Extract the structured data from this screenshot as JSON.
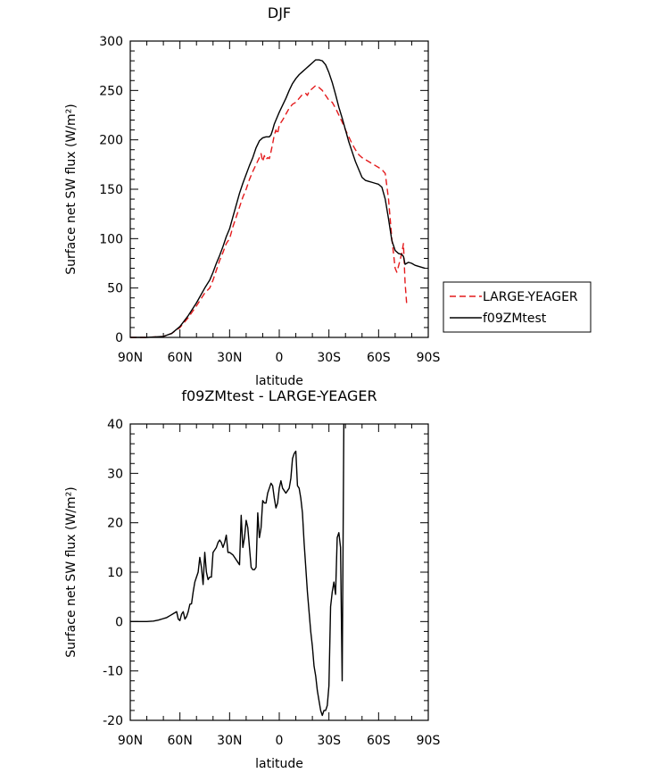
{
  "chart_data": [
    {
      "type": "line",
      "title": "DJF",
      "xlabel": "latitude",
      "ylabel": "Surface net SW flux (W/m²)",
      "xlim": [
        -90,
        90
      ],
      "ylim": [
        0,
        300
      ],
      "x_ticks": [
        -90,
        -60,
        -30,
        0,
        30,
        60,
        90
      ],
      "x_tick_labels": [
        "90N",
        "60N",
        "30N",
        "0",
        "30S",
        "60S",
        "90S"
      ],
      "y_ticks": [
        0,
        50,
        100,
        150,
        200,
        250,
        300
      ],
      "y_tick_labels": [
        "0",
        "50",
        "100",
        "150",
        "200",
        "250",
        "300"
      ],
      "legend_position": "right",
      "series": [
        {
          "name": "LARGE-YEAGER",
          "color": "#e41a1c",
          "dash": "dashed",
          "points": [
            [
              -90,
              0
            ],
            [
              -80,
              0
            ],
            [
              -75,
              0.5
            ],
            [
              -70,
              1
            ],
            [
              -65,
              4
            ],
            [
              -60,
              10
            ],
            [
              -55,
              20
            ],
            [
              -50,
              32
            ],
            [
              -45,
              45
            ],
            [
              -42,
              50
            ],
            [
              -40,
              58
            ],
            [
              -38,
              68
            ],
            [
              -36,
              78
            ],
            [
              -34,
              86
            ],
            [
              -32,
              95
            ],
            [
              -30,
              100
            ],
            [
              -28,
              112
            ],
            [
              -26,
              122
            ],
            [
              -24,
              132
            ],
            [
              -22,
              142
            ],
            [
              -20,
              150
            ],
            [
              -18,
              160
            ],
            [
              -16,
              168
            ],
            [
              -14,
              175
            ],
            [
              -12,
              182
            ],
            [
              -11,
              186
            ],
            [
              -10,
              178
            ],
            [
              -9,
              184
            ],
            [
              -8,
              180
            ],
            [
              -7,
              182
            ],
            [
              -6,
              181
            ],
            [
              -5,
              188
            ],
            [
              -4,
              196
            ],
            [
              -3,
              205
            ],
            [
              -2,
              210
            ],
            [
              -1,
              206
            ],
            [
              0,
              215
            ],
            [
              2,
              220
            ],
            [
              4,
              226
            ],
            [
              6,
              232
            ],
            [
              8,
              236
            ],
            [
              10,
              238
            ],
            [
              12,
              242
            ],
            [
              14,
              246
            ],
            [
              16,
              247
            ],
            [
              17,
              245
            ],
            [
              18,
              249
            ],
            [
              20,
              252
            ],
            [
              22,
              255
            ],
            [
              24,
              253
            ],
            [
              26,
              250
            ],
            [
              28,
              245
            ],
            [
              30,
              240
            ],
            [
              32,
              238
            ],
            [
              34,
              232
            ],
            [
              36,
              225
            ],
            [
              38,
              218
            ],
            [
              40,
              210
            ],
            [
              42,
              203
            ],
            [
              44,
              196
            ],
            [
              46,
              190
            ],
            [
              48,
              185
            ],
            [
              50,
              182
            ],
            [
              52,
              180
            ],
            [
              54,
              178
            ],
            [
              56,
              176
            ],
            [
              58,
              174
            ],
            [
              60,
              172
            ],
            [
              62,
              170
            ],
            [
              64,
              166
            ],
            [
              66,
              140
            ],
            [
              68,
              100
            ],
            [
              70,
              70
            ],
            [
              71,
              66
            ],
            [
              72,
              72
            ],
            [
              74,
              85
            ],
            [
              75,
              95
            ],
            [
              76,
              55
            ],
            [
              77,
              33
            ]
          ]
        },
        {
          "name": "f09ZMtest",
          "color": "#000000",
          "dash": "solid",
          "points": [
            [
              -90,
              0
            ],
            [
              -80,
              0
            ],
            [
              -75,
              0.5
            ],
            [
              -70,
              1
            ],
            [
              -65,
              4
            ],
            [
              -60,
              11
            ],
            [
              -55,
              22
            ],
            [
              -50,
              35
            ],
            [
              -45,
              50
            ],
            [
              -42,
              58
            ],
            [
              -40,
              66
            ],
            [
              -38,
              75
            ],
            [
              -36,
              83
            ],
            [
              -34,
              92
            ],
            [
              -32,
              102
            ],
            [
              -30,
              110
            ],
            [
              -28,
              122
            ],
            [
              -26,
              134
            ],
            [
              -24,
              146
            ],
            [
              -22,
              156
            ],
            [
              -20,
              165
            ],
            [
              -18,
              174
            ],
            [
              -16,
              182
            ],
            [
              -14,
              192
            ],
            [
              -12,
              199
            ],
            [
              -10,
              202
            ],
            [
              -8,
              203
            ],
            [
              -6,
              203
            ],
            [
              -5,
              205
            ],
            [
              -4,
              210
            ],
            [
              -3,
              216
            ],
            [
              -2,
              220
            ],
            [
              0,
              228
            ],
            [
              2,
              235
            ],
            [
              4,
              242
            ],
            [
              6,
              250
            ],
            [
              8,
              257
            ],
            [
              10,
              262
            ],
            [
              12,
              266
            ],
            [
              14,
              269
            ],
            [
              16,
              272
            ],
            [
              18,
              275
            ],
            [
              20,
              278
            ],
            [
              22,
              281
            ],
            [
              24,
              281
            ],
            [
              26,
              280
            ],
            [
              28,
              276
            ],
            [
              30,
              268
            ],
            [
              32,
              258
            ],
            [
              34,
              246
            ],
            [
              36,
              233
            ],
            [
              38,
              222
            ],
            [
              40,
              210
            ],
            [
              42,
              198
            ],
            [
              44,
              188
            ],
            [
              46,
              178
            ],
            [
              48,
              170
            ],
            [
              50,
              162
            ],
            [
              52,
              159
            ],
            [
              54,
              158
            ],
            [
              56,
              157
            ],
            [
              58,
              156
            ],
            [
              60,
              155
            ],
            [
              62,
              152
            ],
            [
              64,
              140
            ],
            [
              66,
              120
            ],
            [
              68,
              98
            ],
            [
              70,
              88
            ],
            [
              72,
              85
            ],
            [
              74,
              84
            ],
            [
              75,
              82
            ],
            [
              76,
              74
            ],
            [
              78,
              76
            ],
            [
              80,
              75
            ],
            [
              82,
              73
            ],
            [
              84,
              72
            ],
            [
              86,
              71
            ],
            [
              88,
              70
            ]
          ]
        }
      ]
    },
    {
      "type": "line",
      "title": "f09ZMtest - LARGE-YEAGER",
      "xlabel": "latitude",
      "ylabel": "Surface net SW flux (W/m²)",
      "xlim": [
        -90,
        90
      ],
      "ylim": [
        -20,
        40
      ],
      "x_ticks": [
        -90,
        -60,
        -30,
        0,
        30,
        60,
        90
      ],
      "x_tick_labels": [
        "90N",
        "60N",
        "30N",
        "0",
        "30S",
        "60S",
        "90S"
      ],
      "y_ticks": [
        -20,
        -10,
        0,
        10,
        20,
        30,
        40
      ],
      "y_tick_labels": [
        "-20",
        "-10",
        "0",
        "10",
        "20",
        "30",
        "40"
      ],
      "series": [
        {
          "name": "",
          "color": "#000000",
          "dash": "solid",
          "points": [
            [
              -90,
              0
            ],
            [
              -80,
              0
            ],
            [
              -76,
              0.1
            ],
            [
              -73,
              0.3
            ],
            [
              -70,
              0.6
            ],
            [
              -69,
              0.7
            ],
            [
              -68,
              0.8
            ],
            [
              -66,
              1.2
            ],
            [
              -64,
              1.6
            ],
            [
              -62,
              2
            ],
            [
              -61,
              0.5
            ],
            [
              -60,
              0.2
            ],
            [
              -59,
              1.5
            ],
            [
              -58,
              2
            ],
            [
              -57,
              0.5
            ],
            [
              -56,
              1
            ],
            [
              -55,
              2
            ],
            [
              -54,
              3.5
            ],
            [
              -53,
              3.6
            ],
            [
              -52,
              6
            ],
            [
              -51,
              8
            ],
            [
              -50,
              9
            ],
            [
              -49,
              10
            ],
            [
              -48,
              13
            ],
            [
              -47,
              11
            ],
            [
              -46,
              7.5
            ],
            [
              -45,
              14
            ],
            [
              -44,
              10
            ],
            [
              -43,
              8.5
            ],
            [
              -42,
              9
            ],
            [
              -41,
              9
            ],
            [
              -40,
              14
            ],
            [
              -39,
              14.5
            ],
            [
              -38,
              15
            ],
            [
              -37,
              16
            ],
            [
              -36,
              16.5
            ],
            [
              -35,
              16
            ],
            [
              -34,
              15
            ],
            [
              -33,
              16
            ],
            [
              -32,
              17.5
            ],
            [
              -31,
              14
            ],
            [
              -30,
              14
            ],
            [
              -28,
              13.5
            ],
            [
              -26,
              12.5
            ],
            [
              -25,
              12
            ],
            [
              -24,
              11.5
            ],
            [
              -23,
              21.5
            ],
            [
              -22,
              15
            ],
            [
              -21,
              17
            ],
            [
              -20,
              20.5
            ],
            [
              -19,
              19
            ],
            [
              -18,
              15
            ],
            [
              -17,
              11
            ],
            [
              -16,
              10.5
            ],
            [
              -15,
              10.5
            ],
            [
              -14,
              11
            ],
            [
              -13,
              22
            ],
            [
              -12,
              17
            ],
            [
              -11,
              19
            ],
            [
              -10,
              24.5
            ],
            [
              -9,
              24
            ],
            [
              -8,
              24
            ],
            [
              -7,
              26
            ],
            [
              -6,
              27
            ],
            [
              -5,
              28
            ],
            [
              -4,
              27.5
            ],
            [
              -3,
              25
            ],
            [
              -2,
              23
            ],
            [
              -1,
              24
            ],
            [
              0,
              27
            ],
            [
              1,
              28.5
            ],
            [
              2,
              27
            ],
            [
              3,
              26.5
            ],
            [
              4,
              26
            ],
            [
              5,
              26.5
            ],
            [
              6,
              27
            ],
            [
              7,
              29
            ],
            [
              8,
              33
            ],
            [
              9,
              34
            ],
            [
              10,
              34.5
            ],
            [
              11,
              27.5
            ],
            [
              12,
              27
            ],
            [
              13,
              25
            ],
            [
              14,
              22
            ],
            [
              15,
              16
            ],
            [
              16,
              11
            ],
            [
              17,
              6
            ],
            [
              18,
              2
            ],
            [
              19,
              -2
            ],
            [
              20,
              -5
            ],
            [
              21,
              -9
            ],
            [
              22,
              -11
            ],
            [
              23,
              -14
            ],
            [
              24,
              -16
            ],
            [
              25,
              -18
            ],
            [
              26,
              -19
            ],
            [
              27,
              -18
            ],
            [
              28,
              -18
            ],
            [
              29,
              -17
            ],
            [
              30,
              -13
            ],
            [
              31,
              3
            ],
            [
              32,
              6
            ],
            [
              33,
              8
            ],
            [
              34,
              5.5
            ],
            [
              35,
              17
            ],
            [
              36,
              18
            ],
            [
              37,
              15
            ],
            [
              38,
              -12
            ],
            [
              39,
              40
            ]
          ]
        }
      ]
    }
  ]
}
